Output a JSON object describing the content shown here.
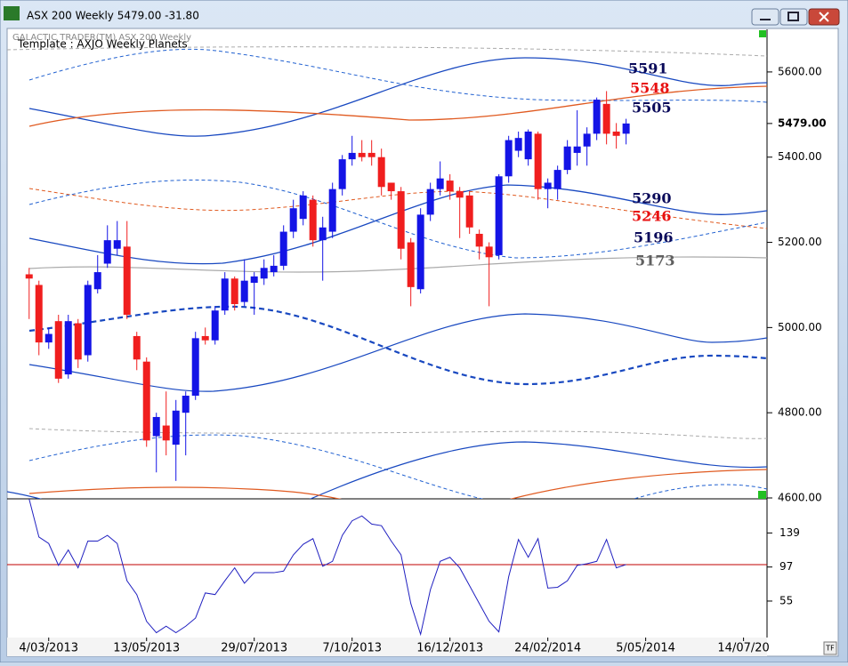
{
  "window": {
    "title": "ASX 200 Weekly 5479.00   -31.80"
  },
  "chart_data": [
    {
      "type": "candlestick",
      "title": "GALACTIC TRADER(TM)   ASX 200 Weekly",
      "subtitle": "Template : AXJO Weekly Planets",
      "up_color": "#1414e6",
      "down_color": "#f01e1e",
      "open": [
        5125,
        5100,
        4965,
        5015,
        4890,
        5010,
        4935,
        5090,
        5150,
        5185,
        5190,
        4980,
        4920,
        4745,
        4770,
        4725,
        4800,
        4840,
        4980,
        4970,
        5040,
        5115,
        5060,
        5105,
        5115,
        5130,
        5145,
        5225,
        5255,
        5300,
        5205,
        5225,
        5325,
        5395,
        5410,
        5410,
        5400,
        5340,
        5320,
        5200,
        5090,
        5265,
        5325,
        5345,
        5320,
        5310,
        5220,
        5190,
        5170,
        5355,
        5415,
        5395,
        5455,
        5325,
        5325,
        5370,
        5410,
        5425,
        5455,
        5525,
        5460,
        5455
      ],
      "high": [
        5140,
        5110,
        5000,
        5030,
        5030,
        5020,
        5110,
        5170,
        5240,
        5250,
        5250,
        4990,
        4930,
        4800,
        4850,
        4830,
        4850,
        4990,
        5000,
        5050,
        5130,
        5120,
        5160,
        5130,
        5160,
        5170,
        5240,
        5300,
        5320,
        5310,
        5260,
        5340,
        5405,
        5450,
        5440,
        5440,
        5420,
        5340,
        5330,
        5210,
        5280,
        5340,
        5390,
        5360,
        5330,
        5320,
        5230,
        5200,
        5360,
        5450,
        5460,
        5465,
        5460,
        5350,
        5380,
        5440,
        5510,
        5470,
        5540,
        5555,
        5480,
        5490
      ],
      "low": [
        5020,
        4935,
        4950,
        4870,
        4880,
        4905,
        4920,
        5080,
        5140,
        5170,
        5020,
        4900,
        4720,
        4660,
        4700,
        4640,
        4700,
        4830,
        4960,
        4960,
        5030,
        5040,
        5050,
        5030,
        5100,
        5120,
        5135,
        5210,
        5240,
        5190,
        5110,
        5210,
        5310,
        5380,
        5390,
        5380,
        5310,
        5300,
        5160,
        5050,
        5080,
        5250,
        5310,
        5300,
        5210,
        5220,
        5160,
        5050,
        5160,
        5340,
        5400,
        5380,
        5300,
        5280,
        5300,
        5360,
        5380,
        5380,
        5440,
        5430,
        5420,
        5430
      ],
      "close": [
        5115,
        4965,
        4985,
        4880,
        5015,
        4925,
        5100,
        5130,
        5205,
        5205,
        5030,
        4925,
        4735,
        4790,
        4735,
        4805,
        4840,
        4975,
        4970,
        5040,
        5115,
        5055,
        5110,
        5120,
        5140,
        5145,
        5225,
        5280,
        5310,
        5205,
        5235,
        5325,
        5395,
        5410,
        5400,
        5400,
        5330,
        5320,
        5185,
        5095,
        5265,
        5325,
        5350,
        5320,
        5305,
        5235,
        5190,
        5165,
        5355,
        5440,
        5445,
        5460,
        5325,
        5340,
        5370,
        5425,
        5425,
        5455,
        5535,
        5455,
        5450,
        5479
      ],
      "xlim": [
        -2.25,
        75.4
      ],
      "xticks": [
        {
          "value": 2,
          "label": "4/03/2013"
        },
        {
          "value": 12,
          "label": "13/05/2013"
        },
        {
          "value": 23,
          "label": "29/07/2013"
        },
        {
          "value": 33,
          "label": "7/10/2013"
        },
        {
          "value": 43,
          "label": "16/12/2013"
        },
        {
          "value": 53,
          "label": "24/02/2014"
        },
        {
          "value": 63,
          "label": "5/05/2014"
        },
        {
          "value": 73,
          "label": "14/07/20"
        }
      ],
      "ylim": [
        4600,
        5700
      ],
      "yticks": [
        {
          "value": 4600,
          "label": "4600.00"
        },
        {
          "value": 4800,
          "label": "4800.00"
        },
        {
          "value": 5000,
          "label": "5000.00"
        },
        {
          "value": 5200,
          "label": "5200.00"
        },
        {
          "value": 5400,
          "label": "5400.00"
        },
        {
          "value": 5600,
          "label": "5600.00"
        }
      ],
      "last_price": {
        "value": 5479,
        "label": "5479.00"
      },
      "annotations": [
        {
          "value": 5591,
          "color": "#0a0a5a"
        },
        {
          "value": 5548,
          "color": "#e81010"
        },
        {
          "value": 5505,
          "color": "#0a0a5a"
        },
        {
          "value": 5290,
          "color": "#0a0a5a"
        },
        {
          "value": 5246,
          "color": "#e81010"
        },
        {
          "value": 5196,
          "color": "#0a0a5a"
        },
        {
          "value": 5173,
          "color": "#606060"
        }
      ]
    },
    {
      "type": "line",
      "color": "#2020c0",
      "values": [
        181,
        134,
        126,
        99,
        118,
        96,
        129,
        129,
        136,
        126,
        80,
        63,
        30,
        16,
        24,
        16,
        24,
        34,
        65,
        63,
        80,
        96,
        77,
        90,
        90,
        90,
        92,
        112,
        125,
        132,
        98,
        104,
        136,
        154,
        160,
        150,
        148,
        129,
        112,
        52,
        14,
        69,
        104,
        109,
        96,
        74,
        52,
        30,
        17,
        85,
        131,
        109,
        132,
        71,
        72,
        80,
        99,
        101,
        104,
        131,
        96,
        100
      ],
      "ylim": [
        10,
        180
      ],
      "yticks": [
        55,
        97,
        139
      ],
      "reference": {
        "value": 100,
        "color": "#c00000"
      }
    }
  ]
}
